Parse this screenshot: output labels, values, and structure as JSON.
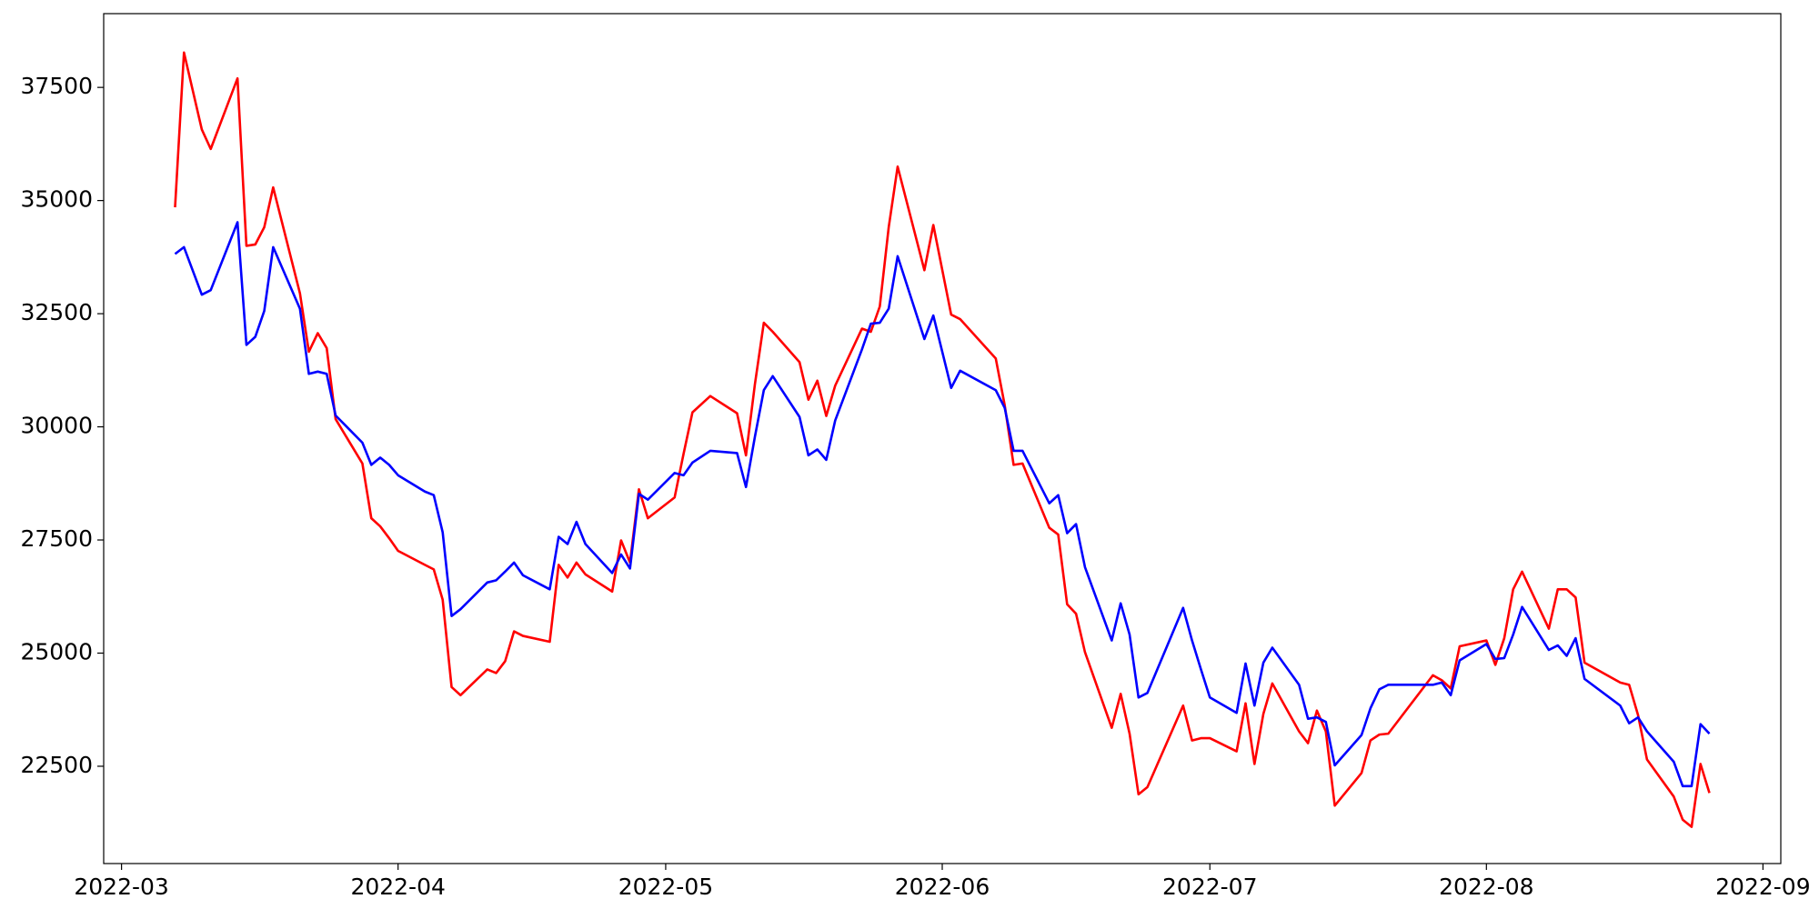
{
  "chart_data": {
    "type": "line",
    "x": [
      "2022-03-07",
      "2022-03-08",
      "2022-03-10",
      "2022-03-11",
      "2022-03-14",
      "2022-03-15",
      "2022-03-16",
      "2022-03-17",
      "2022-03-18",
      "2022-03-21",
      "2022-03-22",
      "2022-03-23",
      "2022-03-24",
      "2022-03-25",
      "2022-03-28",
      "2022-03-29",
      "2022-03-30",
      "2022-03-31",
      "2022-04-01",
      "2022-04-04",
      "2022-04-05",
      "2022-04-06",
      "2022-04-07",
      "2022-04-08",
      "2022-04-11",
      "2022-04-12",
      "2022-04-13",
      "2022-04-14",
      "2022-04-15",
      "2022-04-18",
      "2022-04-19",
      "2022-04-20",
      "2022-04-21",
      "2022-04-22",
      "2022-04-25",
      "2022-04-26",
      "2022-04-27",
      "2022-04-28",
      "2022-04-29",
      "2022-05-02",
      "2022-05-03",
      "2022-05-04",
      "2022-05-06",
      "2022-05-09",
      "2022-05-10",
      "2022-05-11",
      "2022-05-12",
      "2022-05-13",
      "2022-05-16",
      "2022-05-17",
      "2022-05-18",
      "2022-05-19",
      "2022-05-20",
      "2022-05-23",
      "2022-05-24",
      "2022-05-25",
      "2022-05-26",
      "2022-05-27",
      "2022-05-30",
      "2022-05-31",
      "2022-06-02",
      "2022-06-03",
      "2022-06-07",
      "2022-06-08",
      "2022-06-09",
      "2022-06-10",
      "2022-06-13",
      "2022-06-14",
      "2022-06-15",
      "2022-06-16",
      "2022-06-17",
      "2022-06-20",
      "2022-06-21",
      "2022-06-22",
      "2022-06-23",
      "2022-06-24",
      "2022-06-28",
      "2022-06-29",
      "2022-06-30",
      "2022-07-01",
      "2022-07-04",
      "2022-07-05",
      "2022-07-06",
      "2022-07-07",
      "2022-07-08",
      "2022-07-11",
      "2022-07-12",
      "2022-07-13",
      "2022-07-14",
      "2022-07-15",
      "2022-07-18",
      "2022-07-19",
      "2022-07-20",
      "2022-07-21",
      "2022-07-26",
      "2022-07-27",
      "2022-07-28",
      "2022-07-29",
      "2022-08-01",
      "2022-08-02",
      "2022-08-03",
      "2022-08-04",
      "2022-08-05",
      "2022-08-08",
      "2022-08-09",
      "2022-08-10",
      "2022-08-11",
      "2022-08-12",
      "2022-08-16",
      "2022-08-17",
      "2022-08-18",
      "2022-08-19",
      "2022-08-22",
      "2022-08-23",
      "2022-08-24",
      "2022-08-25",
      "2022-08-26"
    ],
    "series": [
      {
        "color": "#ff0000",
        "values": [
          34850,
          38270,
          36570,
          36140,
          37700,
          34000,
          34030,
          34410,
          35290,
          32950,
          31660,
          32070,
          31740,
          30170,
          29190,
          27980,
          27800,
          27540,
          27260,
          26950,
          26850,
          26180,
          24250,
          24070,
          24640,
          24560,
          24820,
          25480,
          25380,
          25250,
          26950,
          26670,
          27000,
          26740,
          26360,
          27490,
          27000,
          28620,
          27980,
          28440,
          29400,
          30320,
          30680,
          30300,
          29370,
          30940,
          32300,
          32100,
          31430,
          30600,
          31020,
          30240,
          30910,
          32170,
          32100,
          32660,
          34410,
          35750,
          33460,
          34460,
          32480,
          32380,
          31510,
          30480,
          29160,
          29190,
          27770,
          27620,
          26080,
          25870,
          25020,
          23350,
          24100,
          23220,
          21880,
          22040,
          23840,
          23070,
          23120,
          23120,
          22830,
          23890,
          22550,
          23660,
          24330,
          23270,
          23010,
          23730,
          23270,
          21630,
          22350,
          23070,
          23200,
          23220,
          24510,
          24400,
          24220,
          25150,
          25280,
          24740,
          25330,
          26410,
          26800,
          25540,
          26410,
          26410,
          26230,
          24790,
          24350,
          24300,
          23630,
          22650,
          21830,
          21320,
          21160,
          22550,
          21910
        ]
      },
      {
        "color": "#0000ff",
        "values": [
          33820,
          33970,
          32920,
          33020,
          34520,
          31810,
          31990,
          32560,
          33970,
          32610,
          31170,
          31220,
          31170,
          30250,
          29650,
          29160,
          29320,
          29160,
          28930,
          28570,
          28490,
          27670,
          25820,
          25970,
          26560,
          26610,
          26800,
          27000,
          26720,
          26410,
          27570,
          27410,
          27900,
          27410,
          26770,
          27180,
          26870,
          28520,
          28390,
          28980,
          28930,
          29210,
          29470,
          29420,
          28670,
          29780,
          30810,
          31120,
          30220,
          29370,
          29500,
          29270,
          30140,
          31710,
          32280,
          32300,
          32610,
          33770,
          31940,
          32460,
          30860,
          31240,
          30810,
          30420,
          29470,
          29470,
          28310,
          28490,
          27650,
          27850,
          26900,
          25280,
          26100,
          25410,
          24020,
          24120,
          26000,
          25280,
          24640,
          24020,
          23680,
          24770,
          23840,
          24790,
          25120,
          24300,
          23550,
          23580,
          23480,
          22520,
          23190,
          23780,
          24200,
          24300,
          24300,
          24350,
          24070,
          24840,
          25200,
          24870,
          24890,
          25410,
          26020,
          25070,
          25170,
          24940,
          25330,
          24430,
          23840,
          23450,
          23580,
          23270,
          22600,
          22060,
          22060,
          23430,
          23220
        ]
      }
    ],
    "xlim": [
      "2022-02-27",
      "2022-09-03"
    ],
    "xticks": [
      {
        "value": "2022-03-01",
        "label": "2022-03"
      },
      {
        "value": "2022-04-01",
        "label": "2022-04"
      },
      {
        "value": "2022-05-01",
        "label": "2022-05"
      },
      {
        "value": "2022-06-01",
        "label": "2022-06"
      },
      {
        "value": "2022-07-01",
        "label": "2022-07"
      },
      {
        "value": "2022-08-01",
        "label": "2022-08"
      },
      {
        "value": "2022-09-01",
        "label": "2022-09"
      }
    ],
    "ylim": [
      20350,
      39130
    ],
    "yticks": [
      22500,
      25000,
      27500,
      30000,
      32500,
      35000,
      37500
    ]
  }
}
